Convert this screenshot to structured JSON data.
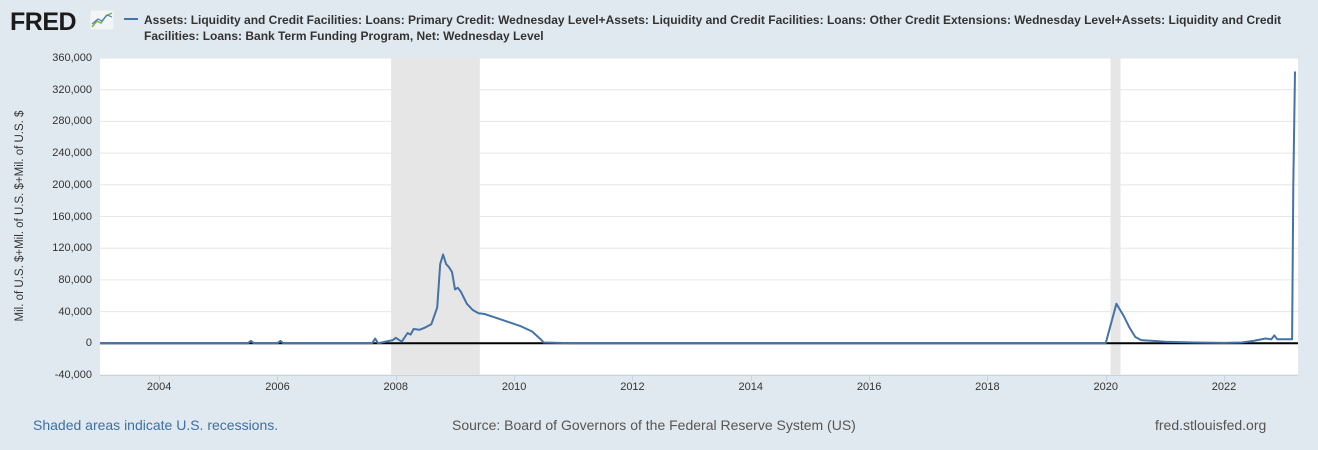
{
  "header": {
    "logo_text": "FRED",
    "logo_icon": "chart-line-icon",
    "title": "Assets: Liquidity and Credit Facilities: Loans: Primary Credit: Wednesday Level+Assets: Liquidity and Credit Facilities: Loans: Other Credit Extensions: Wednesday Level+Assets: Liquidity and Credit Facilities: Loans: Bank Term Funding Program, Net: Wednesday Level",
    "series_color": "#4572a7"
  },
  "footer": {
    "recession_note": "Shaded areas indicate U.S. recessions.",
    "source": "Source: Board of Governors of the Federal Reserve System (US)",
    "site": "fred.stlouisfed.org"
  },
  "colors": {
    "background": "#e1e9f0",
    "plot_background": "#ffffff",
    "recession_shade": "#e6e6e6",
    "series": "#4572a7",
    "zero_line": "#000000",
    "grid": "#e6e6e6"
  },
  "chart_data": {
    "type": "line",
    "title": "Assets: Liquidity and Credit Facilities: Loans: Primary Credit: Wednesday Level+Assets: Liquidity and Credit Facilities: Loans: Other Credit Extensions: Wednesday Level+Assets: Liquidity and Credit Facilities: Loans: Bank Term Funding Program, Net: Wednesday Level",
    "xlabel": "",
    "ylabel": "Mil. of U.S. $+Mil. of U.S. $+Mil. of U.S. $",
    "ylim": [
      -40000,
      360000
    ],
    "xlim": [
      2003.0,
      2023.25
    ],
    "y_ticks": [
      "360,000",
      "320,000",
      "280,000",
      "240,000",
      "200,000",
      "160,000",
      "120,000",
      "80,000",
      "40,000",
      "0",
      "-40,000"
    ],
    "x_ticks": [
      "2004",
      "2006",
      "2008",
      "2010",
      "2012",
      "2014",
      "2016",
      "2018",
      "2020",
      "2022"
    ],
    "grid": true,
    "legend_position": "top",
    "recessions": [
      [
        2007.92,
        2009.42
      ],
      [
        2020.08,
        2020.25
      ]
    ],
    "series": [
      {
        "name": "Primary Credit + Other Credit Extensions + Bank Term Funding Program, Net",
        "x": [
          2003.0,
          2005.5,
          2005.55,
          2005.6,
          2006.0,
          2006.05,
          2006.1,
          2007.0,
          2007.6,
          2007.65,
          2007.7,
          2007.95,
          2008.0,
          2008.1,
          2008.2,
          2008.25,
          2008.3,
          2008.4,
          2008.5,
          2008.6,
          2008.7,
          2008.75,
          2008.8,
          2008.85,
          2008.9,
          2008.95,
          2009.0,
          2009.05,
          2009.1,
          2009.2,
          2009.3,
          2009.4,
          2009.5,
          2009.7,
          2009.9,
          2010.1,
          2010.3,
          2010.45,
          2010.5,
          2011.0,
          2020.0,
          2020.18,
          2020.22,
          2020.3,
          2020.4,
          2020.5,
          2020.6,
          2020.8,
          2021.0,
          2021.5,
          2022.0,
          2022.3,
          2022.5,
          2022.7,
          2022.8,
          2022.85,
          2022.9,
          2023.0,
          2023.15,
          2023.17,
          2023.2
        ],
        "values": [
          0,
          0,
          3000,
          0,
          0,
          3000,
          0,
          0,
          0,
          6000,
          0,
          4000,
          7000,
          2000,
          13000,
          11000,
          18000,
          17000,
          20000,
          24000,
          45000,
          100000,
          112000,
          100000,
          96000,
          90000,
          68000,
          70000,
          65000,
          50000,
          42000,
          38000,
          37000,
          32000,
          27000,
          22000,
          15000,
          5000,
          1000,
          0,
          0,
          50000,
          45000,
          35000,
          20000,
          8000,
          4000,
          3000,
          2000,
          1000,
          500,
          1000,
          3000,
          6000,
          5000,
          10000,
          5000,
          5000,
          5000,
          200000,
          343000
        ]
      }
    ]
  }
}
